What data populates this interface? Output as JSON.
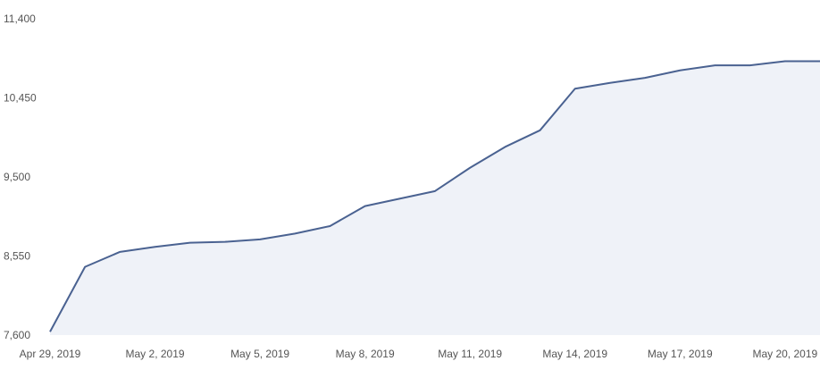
{
  "chart_data": {
    "type": "area",
    "title": "",
    "xlabel": "",
    "ylabel": "",
    "ylim": [
      7600,
      11400
    ],
    "yticks": [
      "11,400",
      "10,450",
      "9,500",
      "8,550",
      "7,600"
    ],
    "ytick_values": [
      11400,
      10450,
      9500,
      8550,
      7600
    ],
    "xtick_labels": [
      "Apr 29, 2019",
      "May 2, 2019",
      "May 5, 2019",
      "May 8, 2019",
      "May 11, 2019",
      "May 14, 2019",
      "May 17, 2019",
      "May 20, 2019"
    ],
    "xtick_indices": [
      0,
      3,
      6,
      9,
      12,
      15,
      18,
      21
    ],
    "x": [
      "Apr 29, 2019",
      "Apr 30, 2019",
      "May 1, 2019",
      "May 2, 2019",
      "May 3, 2019",
      "May 4, 2019",
      "May 5, 2019",
      "May 6, 2019",
      "May 7, 2019",
      "May 8, 2019",
      "May 9, 2019",
      "May 10, 2019",
      "May 11, 2019",
      "May 12, 2019",
      "May 13, 2019",
      "May 14, 2019",
      "May 15, 2019",
      "May 16, 2019",
      "May 17, 2019",
      "May 18, 2019",
      "May 19, 2019",
      "May 20, 2019",
      "May 21, 2019"
    ],
    "series": [
      {
        "values": [
          7640,
          8420,
          8600,
          8660,
          8710,
          8720,
          8750,
          8820,
          8910,
          9150,
          9240,
          9330,
          9610,
          9860,
          10060,
          10560,
          10630,
          10690,
          10780,
          10840,
          10840,
          10890,
          10890
        ]
      }
    ],
    "grid": false,
    "legend": "none",
    "colors": {
      "line": "#4a6291",
      "fill": "#eff2f8",
      "axis_text": "#555555"
    }
  }
}
